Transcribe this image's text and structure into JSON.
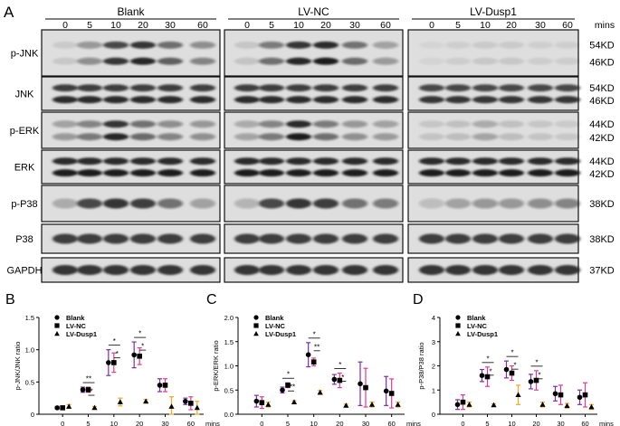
{
  "panel_a": {
    "letter": "A",
    "groups": [
      "Blank",
      "LV-NC",
      "LV-Dusp1"
    ],
    "lane_labels": [
      "0",
      "5",
      "10",
      "20",
      "30",
      "60"
    ],
    "time_unit": "mins",
    "rows": [
      {
        "label": "p-JNK",
        "sizes": [
          "54KD",
          "46KD"
        ]
      },
      {
        "label": "JNK",
        "sizes": [
          "54KD",
          "46KD"
        ]
      },
      {
        "label": "p-ERK",
        "sizes": [
          "44KD",
          "42KD"
        ]
      },
      {
        "label": "ERK",
        "sizes": [
          "44KD",
          "42KD"
        ]
      },
      {
        "label": "p-P38",
        "sizes": [
          "38KD"
        ]
      },
      {
        "label": "P38",
        "sizes": [
          "38KD"
        ]
      },
      {
        "label": "GAPDH",
        "sizes": [
          "37KD"
        ]
      }
    ],
    "band_intensity": {
      "p-JNK": [
        [
          0.1,
          0.4,
          0.85,
          0.95,
          0.65,
          0.45
        ],
        [
          0.12,
          0.55,
          0.95,
          1.0,
          0.6,
          0.35
        ],
        [
          0.05,
          0.08,
          0.1,
          0.1,
          0.08,
          0.08
        ]
      ],
      "JNK": [
        [
          0.9,
          0.9,
          0.9,
          0.9,
          0.9,
          0.9
        ],
        [
          0.9,
          0.9,
          0.9,
          0.9,
          0.9,
          0.9
        ],
        [
          0.85,
          0.85,
          0.85,
          0.85,
          0.85,
          0.85
        ]
      ],
      "p-ERK": [
        [
          0.35,
          0.5,
          0.95,
          0.6,
          0.45,
          0.4
        ],
        [
          0.3,
          0.5,
          1.0,
          0.55,
          0.4,
          0.35
        ],
        [
          0.12,
          0.15,
          0.3,
          0.15,
          0.12,
          0.1
        ]
      ],
      "ERK": [
        [
          1,
          1,
          1,
          1,
          1,
          1
        ],
        [
          1,
          1,
          1,
          1,
          1,
          1
        ],
        [
          1,
          1,
          1,
          1,
          1,
          1
        ]
      ],
      "p-P38": [
        [
          0.3,
          0.85,
          0.95,
          0.9,
          0.6,
          0.35
        ],
        [
          0.25,
          0.85,
          0.95,
          0.9,
          0.6,
          0.55
        ],
        [
          0.2,
          0.35,
          0.4,
          0.4,
          0.45,
          0.5
        ]
      ],
      "P38": [
        [
          0.9,
          0.9,
          0.9,
          0.9,
          0.9,
          0.9
        ],
        [
          0.9,
          0.9,
          0.9,
          0.9,
          0.9,
          0.9
        ],
        [
          0.9,
          0.9,
          0.9,
          0.9,
          0.9,
          0.9
        ]
      ],
      "GAPDH": [
        [
          0.95,
          0.95,
          0.95,
          0.95,
          0.95,
          0.95
        ],
        [
          0.95,
          0.95,
          0.95,
          0.95,
          0.95,
          0.95
        ],
        [
          0.95,
          0.95,
          0.95,
          0.95,
          0.95,
          0.95
        ]
      ]
    }
  },
  "chart_data": [
    {
      "panel": "B",
      "type": "scatter",
      "ylabel": "p-JNK/JNK ratio",
      "xlabel": "mins",
      "categories": [
        "0",
        "5",
        "10",
        "20",
        "30",
        "60"
      ],
      "ylim": [
        0,
        1.5
      ],
      "yticks": [
        "0",
        "0.5",
        "1.0",
        "1.5"
      ],
      "colors": {
        "Blank": "#7b2fa8",
        "LV-NC": "#e83a8c",
        "LV-Dusp1": "#f5a623"
      },
      "series": [
        {
          "name": "Blank",
          "marker": "circle",
          "values": [
            0.1,
            0.38,
            0.8,
            0.92,
            0.45,
            0.2
          ],
          "errors": [
            0.02,
            0.04,
            0.2,
            0.2,
            0.1,
            0.05
          ]
        },
        {
          "name": "LV-NC",
          "marker": "square",
          "values": [
            0.1,
            0.38,
            0.8,
            0.9,
            0.45,
            0.17
          ],
          "errors": [
            0.02,
            0.04,
            0.15,
            0.13,
            0.1,
            0.1
          ]
        },
        {
          "name": "LV-Dusp1",
          "marker": "triangle",
          "values": [
            0.12,
            0.1,
            0.19,
            0.2,
            0.12,
            0.1
          ],
          "errors": [
            0.03,
            0.02,
            0.06,
            0.03,
            0.15,
            0.1
          ]
        }
      ],
      "significance": [
        {
          "x": "5",
          "marks": [
            "**",
            "*"
          ]
        },
        {
          "x": "10",
          "marks": [
            "*",
            "*"
          ]
        },
        {
          "x": "20",
          "marks": [
            "*",
            "*"
          ]
        }
      ]
    },
    {
      "panel": "C",
      "type": "scatter",
      "ylabel": "p-ERK/ERK ratio",
      "xlabel": "mins",
      "categories": [
        "0",
        "5",
        "10",
        "20",
        "30",
        "60"
      ],
      "ylim": [
        0,
        2.0
      ],
      "yticks": [
        "0.0",
        "0.5",
        "1.0",
        "1.5",
        "2.0"
      ],
      "colors": {
        "Blank": "#7b2fa8",
        "LV-NC": "#e83a8c",
        "LV-Dusp1": "#f5a623"
      },
      "series": [
        {
          "name": "Blank",
          "marker": "circle",
          "values": [
            0.27,
            0.5,
            1.23,
            0.72,
            0.63,
            0.48
          ],
          "errors": [
            0.12,
            0.06,
            0.25,
            0.1,
            0.45,
            0.3
          ]
        },
        {
          "name": "LV-NC",
          "marker": "square",
          "values": [
            0.24,
            0.6,
            1.08,
            0.7,
            0.55,
            0.43
          ],
          "errors": [
            0.12,
            0.05,
            0.08,
            0.15,
            0.4,
            0.3
          ]
        },
        {
          "name": "LV-Dusp1",
          "marker": "triangle",
          "values": [
            0.2,
            0.25,
            0.45,
            0.18,
            0.2,
            0.2
          ],
          "errors": [
            0.05,
            0.03,
            0.04,
            0.03,
            0.05,
            0.05
          ]
        }
      ],
      "significance": [
        {
          "x": "5",
          "marks": [
            "*",
            "***"
          ]
        },
        {
          "x": "10",
          "marks": [
            "*",
            "**"
          ]
        },
        {
          "x": "20",
          "marks": [
            "*",
            "*"
          ]
        }
      ]
    },
    {
      "panel": "D",
      "type": "scatter",
      "ylabel": "p-P38/P38 ratio",
      "xlabel": "mins",
      "categories": [
        "0",
        "5",
        "10",
        "20",
        "30",
        "60"
      ],
      "ylim": [
        0,
        4
      ],
      "yticks": [
        "0",
        "1",
        "2",
        "3",
        "4"
      ],
      "colors": {
        "Blank": "#7b2fa8",
        "LV-NC": "#e83a8c",
        "LV-Dusp1": "#f5a623"
      },
      "series": [
        {
          "name": "Blank",
          "marker": "circle",
          "values": [
            0.4,
            1.6,
            1.85,
            1.35,
            0.85,
            0.7
          ],
          "errors": [
            0.2,
            0.25,
            0.35,
            0.3,
            0.3,
            0.3
          ]
        },
        {
          "name": "LV-NC",
          "marker": "square",
          "values": [
            0.5,
            1.55,
            1.7,
            1.4,
            0.8,
            0.8
          ],
          "errors": [
            0.3,
            0.4,
            0.3,
            0.4,
            0.4,
            0.5
          ]
        },
        {
          "name": "LV-Dusp1",
          "marker": "triangle",
          "values": [
            0.4,
            0.38,
            0.8,
            0.4,
            0.35,
            0.3
          ],
          "errors": [
            0.1,
            0.05,
            0.4,
            0.1,
            0.1,
            0.1
          ]
        }
      ],
      "significance": [
        {
          "x": "5",
          "marks": [
            "*",
            "*"
          ]
        },
        {
          "x": "10",
          "marks": [
            "*",
            "*"
          ]
        },
        {
          "x": "20",
          "marks": [
            "*",
            "*"
          ]
        }
      ]
    }
  ]
}
